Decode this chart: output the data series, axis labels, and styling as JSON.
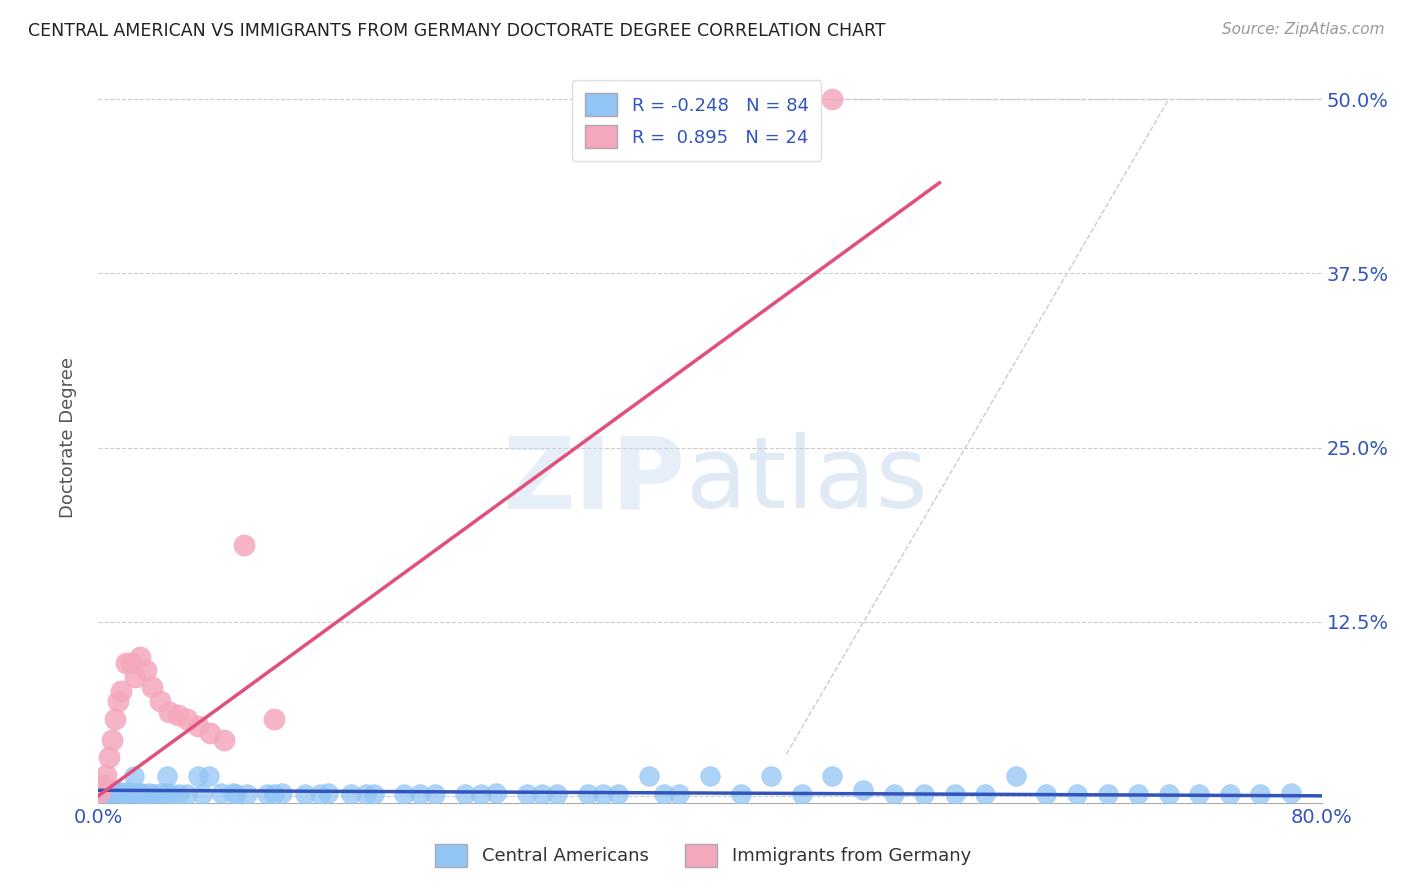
{
  "title": "CENTRAL AMERICAN VS IMMIGRANTS FROM GERMANY DOCTORATE DEGREE CORRELATION CHART",
  "source": "Source: ZipAtlas.com",
  "ylabel": "Doctorate Degree",
  "yticks": [
    0.0,
    0.125,
    0.25,
    0.375,
    0.5
  ],
  "ytick_labels": [
    "",
    "12.5%",
    "25.0%",
    "37.5%",
    "50.0%"
  ],
  "xlim": [
    0.0,
    0.8
  ],
  "ylim": [
    -0.005,
    0.52
  ],
  "legend1_label": "R = -0.248   N = 84",
  "legend2_label": "R =  0.895   N = 24",
  "legend_bottom_label1": "Central Americans",
  "legend_bottom_label2": "Immigrants from Germany",
  "color_blue": "#92C5F5",
  "color_pink": "#F5A8BC",
  "trendline_blue": "#3355BB",
  "trendline_pink": "#E0507A",
  "background_color": "#FFFFFF",
  "grid_color": "#CCCCCC",
  "title_color": "#222222",
  "axis_label_color": "#555555",
  "tick_color": "#3355BB",
  "source_color": "#999999",
  "ref_line_color": "#CCCCCC",
  "blue_scatter_x": [
    0.002,
    0.003,
    0.004,
    0.005,
    0.006,
    0.007,
    0.008,
    0.009,
    0.01,
    0.011,
    0.012,
    0.013,
    0.014,
    0.015,
    0.016,
    0.017,
    0.018,
    0.019,
    0.02,
    0.022,
    0.025,
    0.028,
    0.03,
    0.033,
    0.036,
    0.04,
    0.044,
    0.048,
    0.053,
    0.058,
    0.065,
    0.072,
    0.08,
    0.088,
    0.097,
    0.11,
    0.12,
    0.135,
    0.15,
    0.165,
    0.18,
    0.2,
    0.22,
    0.24,
    0.26,
    0.28,
    0.3,
    0.32,
    0.34,
    0.36,
    0.38,
    0.4,
    0.42,
    0.44,
    0.46,
    0.48,
    0.5,
    0.52,
    0.54,
    0.56,
    0.58,
    0.6,
    0.62,
    0.64,
    0.66,
    0.68,
    0.7,
    0.72,
    0.74,
    0.76,
    0.78,
    0.001,
    0.023,
    0.045,
    0.068,
    0.09,
    0.115,
    0.145,
    0.175,
    0.21,
    0.25,
    0.29,
    0.33,
    0.37
  ],
  "blue_scatter_y": [
    0.005,
    0.004,
    0.003,
    0.004,
    0.003,
    0.002,
    0.003,
    0.003,
    0.004,
    0.003,
    0.003,
    0.002,
    0.002,
    0.003,
    0.002,
    0.002,
    0.002,
    0.003,
    0.003,
    0.002,
    0.002,
    0.002,
    0.001,
    0.002,
    0.001,
    0.002,
    0.002,
    0.001,
    0.001,
    0.001,
    0.014,
    0.014,
    0.002,
    0.002,
    0.001,
    0.001,
    0.002,
    0.001,
    0.002,
    0.001,
    0.001,
    0.001,
    0.001,
    0.001,
    0.002,
    0.001,
    0.001,
    0.001,
    0.001,
    0.014,
    0.001,
    0.014,
    0.001,
    0.014,
    0.001,
    0.014,
    0.004,
    0.001,
    0.001,
    0.001,
    0.001,
    0.014,
    0.001,
    0.001,
    0.001,
    0.001,
    0.001,
    0.001,
    0.001,
    0.001,
    0.002,
    0.004,
    0.014,
    0.014,
    0.001,
    0.001,
    0.001,
    0.001,
    0.001,
    0.001,
    0.001,
    0.001,
    0.001,
    0.001
  ],
  "pink_scatter_x": [
    0.001,
    0.003,
    0.005,
    0.007,
    0.009,
    0.011,
    0.013,
    0.015,
    0.018,
    0.021,
    0.024,
    0.027,
    0.031,
    0.035,
    0.04,
    0.046,
    0.052,
    0.058,
    0.065,
    0.073,
    0.082,
    0.095,
    0.115,
    0.48
  ],
  "pink_scatter_y": [
    0.003,
    0.008,
    0.015,
    0.028,
    0.04,
    0.055,
    0.068,
    0.075,
    0.095,
    0.095,
    0.085,
    0.1,
    0.09,
    0.078,
    0.068,
    0.06,
    0.058,
    0.055,
    0.05,
    0.045,
    0.04,
    0.18,
    0.055,
    0.5
  ],
  "blue_trend_x": [
    0.0,
    0.8
  ],
  "blue_trend_y": [
    0.004,
    0.0
  ],
  "pink_trend_x": [
    0.0,
    0.55
  ],
  "pink_trend_y": [
    0.0,
    0.44
  ],
  "ref_line_x": [
    0.45,
    0.8
  ],
  "ref_line_y": [
    0.5,
    0.5
  ],
  "ref_line2_x": [
    0.45,
    0.7
  ],
  "ref_line2_y": [
    0.03,
    0.5
  ]
}
